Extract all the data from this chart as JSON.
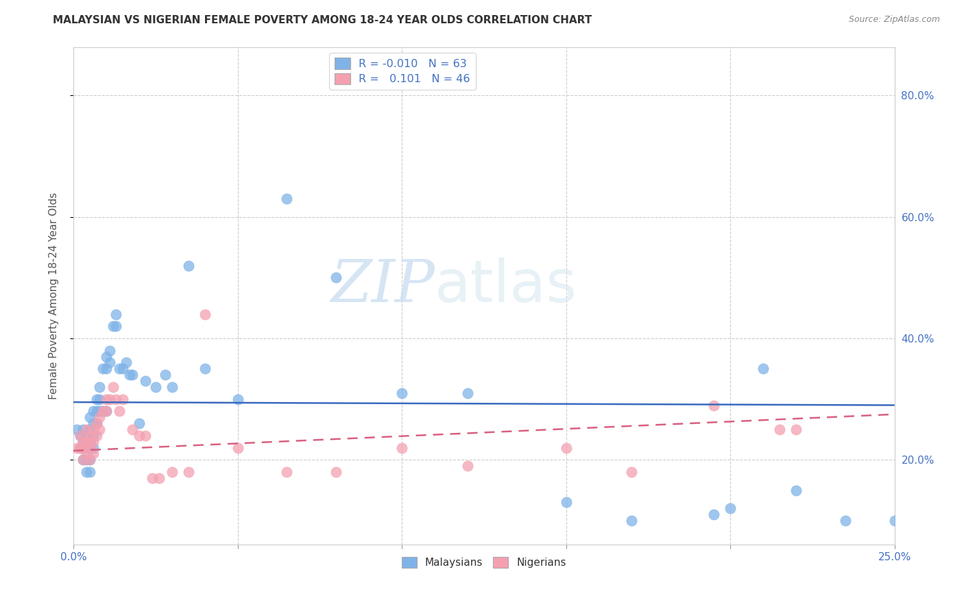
{
  "title": "MALAYSIAN VS NIGERIAN FEMALE POVERTY AMONG 18-24 YEAR OLDS CORRELATION CHART",
  "source": "Source: ZipAtlas.com",
  "ylabel": "Female Poverty Among 18-24 Year Olds",
  "xlim": [
    0.0,
    0.25
  ],
  "ylim": [
    0.06,
    0.88
  ],
  "ytick_positions": [
    0.2,
    0.4,
    0.6,
    0.8
  ],
  "xtick_positions": [
    0.0,
    0.05,
    0.1,
    0.15,
    0.2,
    0.25
  ],
  "legend_r_malaysian": "-0.010",
  "legend_n_malaysian": "63",
  "legend_r_nigerian": "0.101",
  "legend_n_nigerian": "46",
  "color_malaysian": "#7fb3e8",
  "color_nigerian": "#f4a0b0",
  "color_trendline_malaysian": "#3a6bc0",
  "color_trendline_nigerian": "#d96080",
  "background_color": "#ffffff",
  "watermark_zip": "ZIP",
  "watermark_atlas": "atlas",
  "malaysian_x": [
    0.001,
    0.002,
    0.002,
    0.003,
    0.003,
    0.003,
    0.003,
    0.004,
    0.004,
    0.004,
    0.004,
    0.004,
    0.005,
    0.005,
    0.005,
    0.005,
    0.005,
    0.005,
    0.006,
    0.006,
    0.006,
    0.006,
    0.007,
    0.007,
    0.007,
    0.008,
    0.008,
    0.008,
    0.009,
    0.009,
    0.01,
    0.01,
    0.01,
    0.011,
    0.011,
    0.012,
    0.013,
    0.013,
    0.014,
    0.015,
    0.016,
    0.017,
    0.018,
    0.02,
    0.022,
    0.025,
    0.028,
    0.03,
    0.035,
    0.04,
    0.05,
    0.065,
    0.08,
    0.1,
    0.12,
    0.15,
    0.17,
    0.195,
    0.2,
    0.21,
    0.22,
    0.235,
    0.25
  ],
  "malaysian_y": [
    0.25,
    0.24,
    0.22,
    0.23,
    0.25,
    0.22,
    0.2,
    0.24,
    0.23,
    0.22,
    0.2,
    0.18,
    0.27,
    0.25,
    0.23,
    0.22,
    0.2,
    0.18,
    0.28,
    0.26,
    0.24,
    0.22,
    0.3,
    0.28,
    0.26,
    0.32,
    0.3,
    0.28,
    0.35,
    0.28,
    0.37,
    0.35,
    0.28,
    0.38,
    0.36,
    0.42,
    0.44,
    0.42,
    0.35,
    0.35,
    0.36,
    0.34,
    0.34,
    0.26,
    0.33,
    0.32,
    0.34,
    0.32,
    0.52,
    0.35,
    0.3,
    0.63,
    0.5,
    0.31,
    0.31,
    0.13,
    0.1,
    0.11,
    0.12,
    0.35,
    0.15,
    0.1,
    0.1
  ],
  "nigerian_x": [
    0.001,
    0.002,
    0.002,
    0.003,
    0.003,
    0.003,
    0.004,
    0.004,
    0.004,
    0.005,
    0.005,
    0.005,
    0.005,
    0.006,
    0.006,
    0.006,
    0.007,
    0.007,
    0.008,
    0.008,
    0.009,
    0.01,
    0.01,
    0.011,
    0.012,
    0.013,
    0.014,
    0.015,
    0.018,
    0.02,
    0.022,
    0.024,
    0.026,
    0.03,
    0.035,
    0.04,
    0.05,
    0.065,
    0.08,
    0.1,
    0.12,
    0.15,
    0.17,
    0.195,
    0.215,
    0.22
  ],
  "nigerian_y": [
    0.22,
    0.24,
    0.22,
    0.23,
    0.22,
    0.2,
    0.25,
    0.23,
    0.21,
    0.24,
    0.23,
    0.22,
    0.2,
    0.25,
    0.23,
    0.21,
    0.26,
    0.24,
    0.27,
    0.25,
    0.28,
    0.3,
    0.28,
    0.3,
    0.32,
    0.3,
    0.28,
    0.3,
    0.25,
    0.24,
    0.24,
    0.17,
    0.17,
    0.18,
    0.18,
    0.44,
    0.22,
    0.18,
    0.18,
    0.22,
    0.19,
    0.22,
    0.18,
    0.29,
    0.25,
    0.25
  ],
  "trendline_m_x0": 0.0,
  "trendline_m_x1": 0.25,
  "trendline_m_y0": 0.295,
  "trendline_m_y1": 0.29,
  "trendline_n_x0": 0.0,
  "trendline_n_x1": 0.25,
  "trendline_n_y0": 0.215,
  "trendline_n_y1": 0.275
}
